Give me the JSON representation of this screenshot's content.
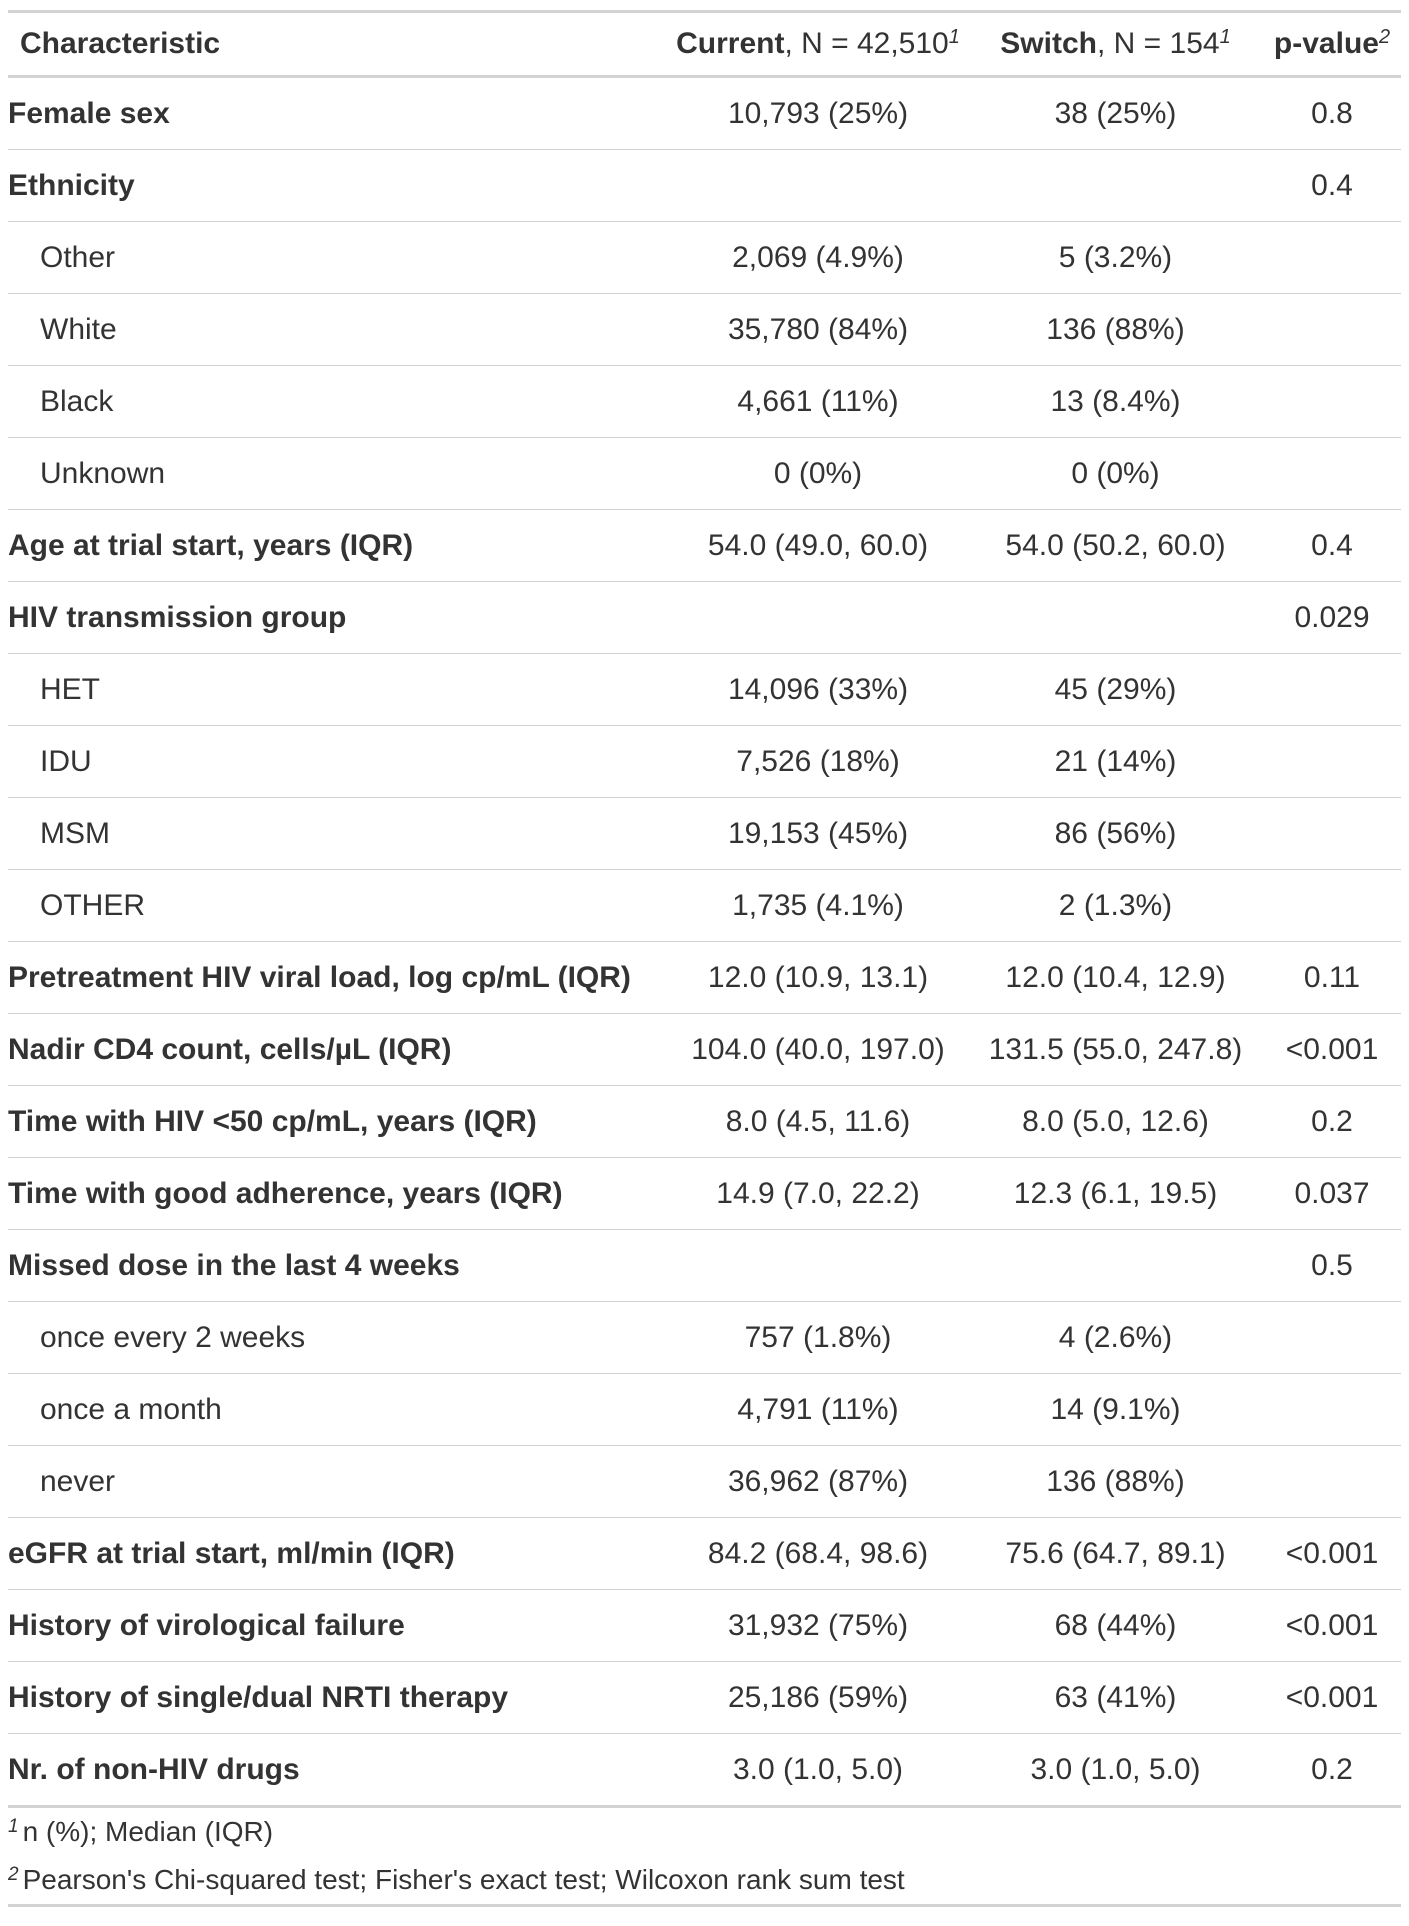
{
  "header": {
    "characteristic": "Characteristic",
    "current_bold": "Current",
    "current_n": ", N = 42,510",
    "current_sup": "1",
    "switch_bold": "Switch",
    "switch_n": ", N = 154",
    "switch_sup": "1",
    "pvalue": "p-value",
    "pvalue_sup": "2"
  },
  "rows": [
    {
      "label": "Female sex",
      "current": "10,793 (25%)",
      "switch": "38 (25%)",
      "p": "0.8"
    },
    {
      "label": "Ethnicity",
      "current": "",
      "switch": "",
      "p": "0.4"
    },
    {
      "label": "Other",
      "current": "2,069 (4.9%)",
      "switch": "5 (3.2%)",
      "p": ""
    },
    {
      "label": "White",
      "current": "35,780 (84%)",
      "switch": "136 (88%)",
      "p": ""
    },
    {
      "label": "Black",
      "current": "4,661 (11%)",
      "switch": "13 (8.4%)",
      "p": ""
    },
    {
      "label": "Unknown",
      "current": "0 (0%)",
      "switch": "0 (0%)",
      "p": ""
    },
    {
      "label": "Age at trial start, years (IQR)",
      "current": "54.0 (49.0, 60.0)",
      "switch": "54.0 (50.2, 60.0)",
      "p": "0.4"
    },
    {
      "label": "HIV transmission group",
      "current": "",
      "switch": "",
      "p": "0.029"
    },
    {
      "label": "HET",
      "current": "14,096 (33%)",
      "switch": "45 (29%)",
      "p": ""
    },
    {
      "label": "IDU",
      "current": "7,526 (18%)",
      "switch": "21 (14%)",
      "p": ""
    },
    {
      "label": "MSM",
      "current": "19,153 (45%)",
      "switch": "86 (56%)",
      "p": ""
    },
    {
      "label": "OTHER",
      "current": "1,735 (4.1%)",
      "switch": "2 (1.3%)",
      "p": ""
    },
    {
      "label": "Pretreatment HIV viral load, log cp/mL (IQR)",
      "current": "12.0 (10.9, 13.1)",
      "switch": "12.0 (10.4, 12.9)",
      "p": "0.11"
    },
    {
      "label": "Nadir CD4 count, cells/µL (IQR)",
      "current": "104.0 (40.0, 197.0)",
      "switch": "131.5 (55.0, 247.8)",
      "p": "<0.001"
    },
    {
      "label": "Time with HIV <50 cp/mL, years (IQR)",
      "current": "8.0 (4.5, 11.6)",
      "switch": "8.0 (5.0, 12.6)",
      "p": "0.2"
    },
    {
      "label": "Time with good adherence, years (IQR)",
      "current": "14.9 (7.0, 22.2)",
      "switch": "12.3 (6.1, 19.5)",
      "p": "0.037"
    },
    {
      "label": "Missed dose in the last 4 weeks",
      "current": "",
      "switch": "",
      "p": "0.5"
    },
    {
      "label": "once every 2 weeks",
      "current": "757 (1.8%)",
      "switch": "4 (2.6%)",
      "p": ""
    },
    {
      "label": "once a month",
      "current": "4,791 (11%)",
      "switch": "14 (9.1%)",
      "p": ""
    },
    {
      "label": "never",
      "current": "36,962 (87%)",
      "switch": "136 (88%)",
      "p": ""
    },
    {
      "label": "eGFR at trial start, ml/min (IQR)",
      "current": "84.2 (68.4, 98.6)",
      "switch": "75.6 (64.7, 89.1)",
      "p": "<0.001"
    },
    {
      "label": "History of virological failure",
      "current": "31,932 (75%)",
      "switch": "68 (44%)",
      "p": "<0.001"
    },
    {
      "label": "History of single/dual NRTI therapy",
      "current": "25,186 (59%)",
      "switch": "63 (41%)",
      "p": "<0.001"
    },
    {
      "label": "Nr. of non-HIV drugs",
      "current": "3.0 (1.0, 5.0)",
      "switch": "3.0 (1.0, 5.0)",
      "p": "0.2"
    }
  ],
  "footnotes": [
    {
      "mark": "1",
      "text": "n (%); Median (IQR)"
    },
    {
      "mark": "2",
      "text": "Pearson's Chi-squared test; Fisher's exact test; Wilcoxon rank sum test"
    }
  ]
}
